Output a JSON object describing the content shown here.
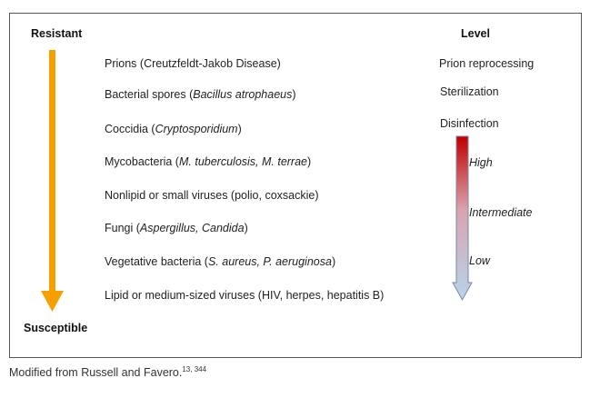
{
  "header": {
    "resistant_label": "Resistant",
    "level_label": "Level",
    "susceptible_label": "Susceptible"
  },
  "organisms": [
    {
      "prefix": "Prions (Creutzfeldt-Jakob Disease)",
      "italic": "",
      "suffix": ""
    },
    {
      "prefix": "Bacterial spores (",
      "italic": "Bacillus atrophaeus",
      "suffix": ")"
    },
    {
      "prefix": "Coccidia (",
      "italic": "Cryptosporidium",
      "suffix": ")"
    },
    {
      "prefix": "Mycobacteria (",
      "italic": "M. tuberculosis, M. terrae",
      "suffix": ")"
    },
    {
      "prefix": "Nonlipid or small viruses (polio, coxsackie)",
      "italic": "",
      "suffix": ""
    },
    {
      "prefix": "Fungi (",
      "italic": "Aspergillus, Candida",
      "suffix": ")"
    },
    {
      "prefix": "Vegetative bacteria (",
      "italic": "S. aureus, P. aeruginosa",
      "suffix": ")"
    },
    {
      "prefix": "Lipid or medium-sized viruses (HIV, herpes, hepatitis B)",
      "italic": "",
      "suffix": ""
    }
  ],
  "levels": {
    "prion": "Prion reprocessing",
    "sterilization": "Sterilization",
    "disinfection": "Disinfection"
  },
  "gradient": {
    "high": "High",
    "intermediate": "Intermediate",
    "low": "Low",
    "top_color": "#c00000",
    "bottom_color": "#b8d4ec"
  },
  "arrow_color": "#f5a000",
  "caption": {
    "text": "Modified from Russell and Favero.",
    "refs": "13, 344"
  }
}
